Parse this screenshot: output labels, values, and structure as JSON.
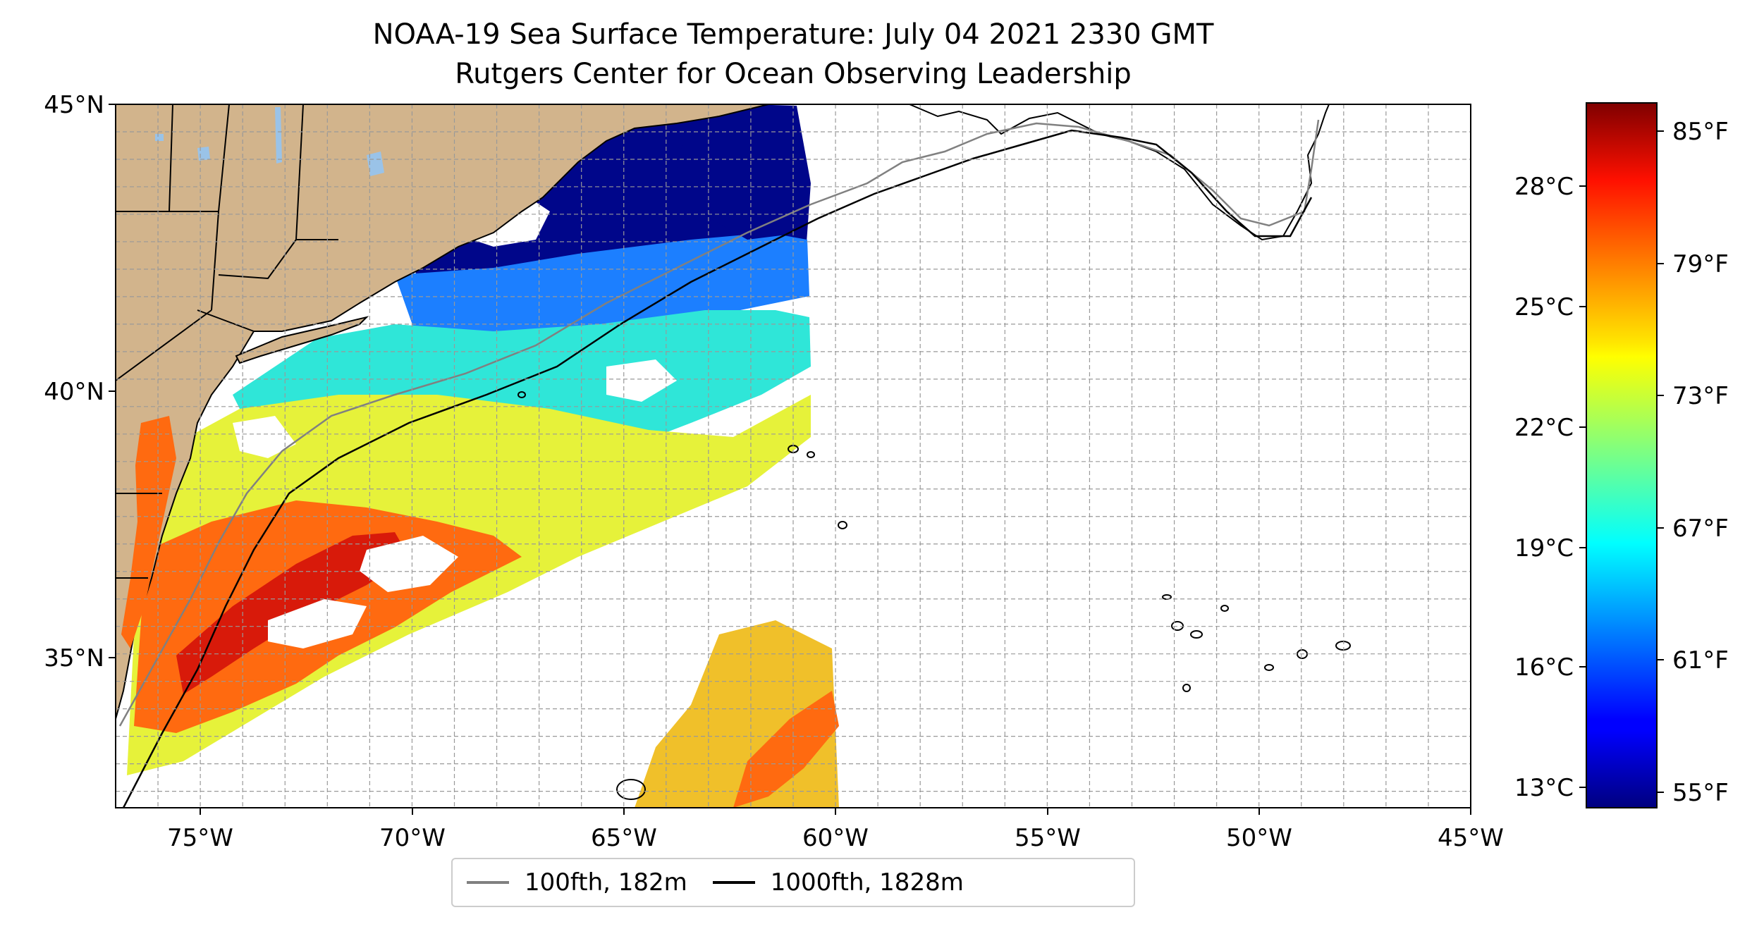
{
  "title": "NOAA-19 Sea Surface Temperature: July 04 2021 2330 GMT",
  "subtitle": "Rutgers Center for Ocean Observing Leadership",
  "map": {
    "projection": "PlateCarree",
    "lon_range": [
      -77,
      -45
    ],
    "lat_range": [
      32.2,
      45
    ],
    "grid": true,
    "lon_ticks": [
      "75°W",
      "70°W",
      "65°W",
      "60°W",
      "55°W",
      "50°W",
      "45°W"
    ],
    "lat_ticks": [
      "35°N",
      "40°N",
      "45°N"
    ],
    "land_color": "#d2b48c",
    "lake_color": "#9ac3e8",
    "coastline_color": "#000000"
  },
  "colorbar": {
    "colormap": "jet",
    "range_f": [
      54,
      86
    ],
    "celsius_ticks": [
      "13°C",
      "16°C",
      "19°C",
      "22°C",
      "25°C",
      "28°C"
    ],
    "fahrenheit_ticks": [
      "55°F",
      "61°F",
      "67°F",
      "73°F",
      "79°F",
      "85°F"
    ]
  },
  "legend": {
    "position": "bottom-center",
    "items": [
      {
        "label": "100fth, 182m",
        "color": "#808080"
      },
      {
        "label": "1000fth, 1828m",
        "color": "#000000"
      }
    ]
  }
}
